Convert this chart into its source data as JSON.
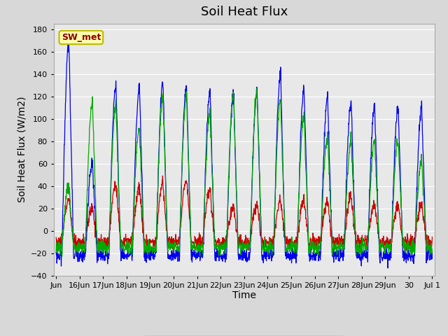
{
  "title": "Soil Heat Flux",
  "ylabel": "Soil Heat Flux (W/m2)",
  "xlabel": "Time",
  "ylim": [
    -40,
    185
  ],
  "yticks": [
    -40,
    -20,
    0,
    20,
    40,
    60,
    80,
    100,
    120,
    140,
    160,
    180
  ],
  "n_days": 16,
  "n_per_day": 96,
  "line_colors": {
    "SHF1": "#cc0000",
    "SHF2": "#0000ee",
    "SHF3": "#00aa00"
  },
  "line_width": 0.9,
  "bg_color": "#d8d8d8",
  "plot_bg": "#e8e8e8",
  "grid_color": "#ffffff",
  "sw_met_facecolor": "#ffffaa",
  "sw_met_edgecolor": "#bbbb00",
  "sw_met_textcolor": "#8b0000",
  "sw_met_fontsize": 9,
  "title_fontsize": 13,
  "label_fontsize": 10,
  "tick_fontsize": 8,
  "legend_fontsize": 9,
  "xtick_labels": [
    "Jun",
    "16Jun",
    "17Jun",
    "18Jun",
    "19Jun",
    "20Jun",
    "21Jun",
    "22Jun",
    "23Jun",
    "24Jun",
    "25Jun",
    "26Jun",
    "27Jun",
    "28Jun",
    "29Jun",
    "30",
    "Jul 1"
  ]
}
